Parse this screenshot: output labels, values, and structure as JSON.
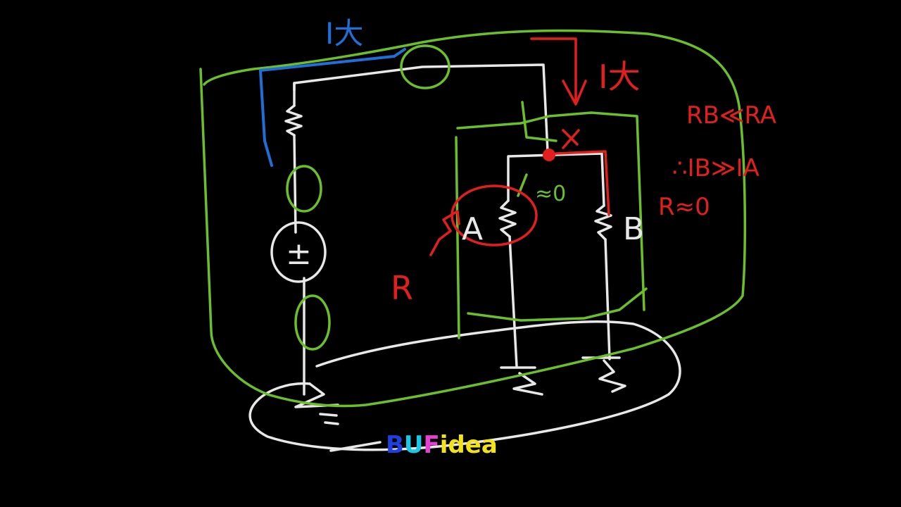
{
  "labels": {
    "blue_current": "I大",
    "red_current": "I大",
    "relation_resistance": "RB≪RA",
    "relation_current": "∴IB≫IA",
    "r_approx_zero": "R≈0",
    "resistor_r": "R",
    "node_a": "A",
    "node_b": "B",
    "source_symbol": "±",
    "near_zero": "≈0"
  },
  "logo": {
    "b": "B",
    "u": "U",
    "f": "F",
    "rest": "idea",
    "colors": {
      "b": "#1f3fe0",
      "u": "#19c8e6",
      "f": "#e63fd6",
      "rest": "#f2e21a"
    }
  },
  "colors": {
    "background": "#000000",
    "white_ink": "#e8e8e8",
    "green_ink": "#6bbf2a",
    "red_ink": "#e21f1f",
    "blue_ink": "#1f6fd6"
  }
}
